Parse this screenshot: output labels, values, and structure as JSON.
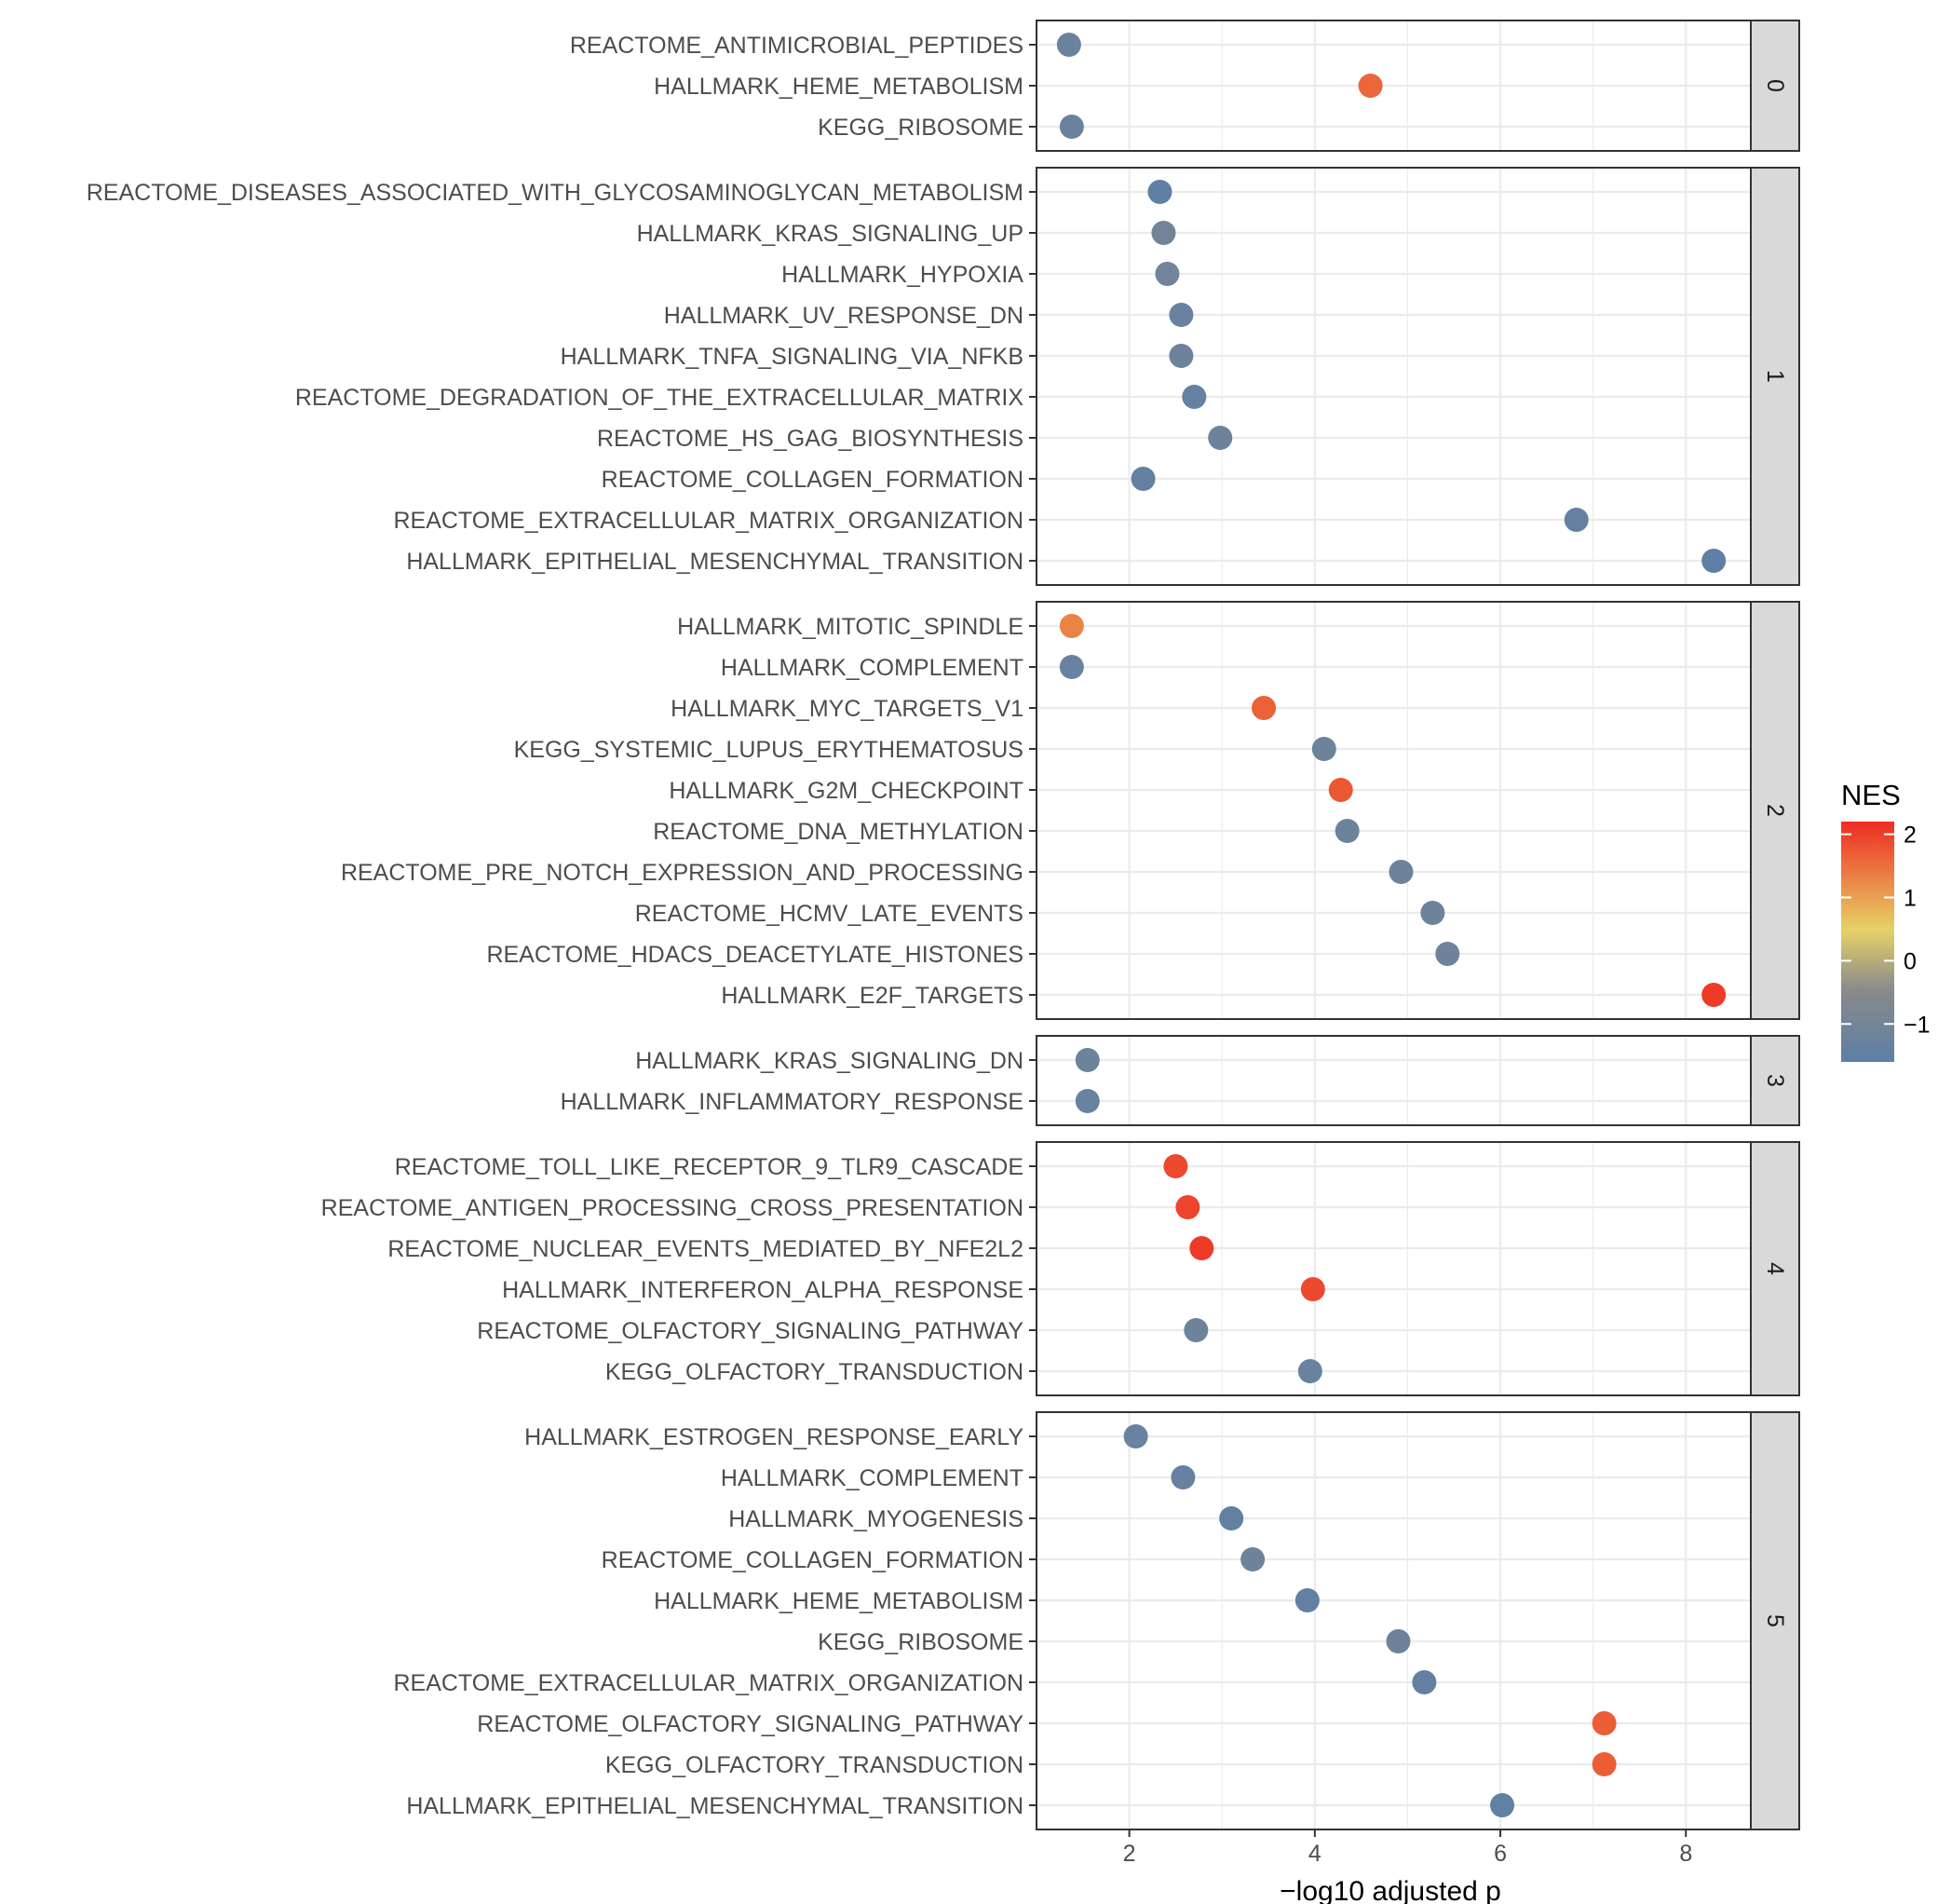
{
  "chart_data": {
    "type": "scatter",
    "xlabel": "−log10 adjusted p",
    "xlim": [
      1.0,
      8.7
    ],
    "xticks": [
      {
        "value": 2,
        "label": "2"
      },
      {
        "value": 4,
        "label": "4"
      },
      {
        "value": 6,
        "label": "6"
      },
      {
        "value": 8,
        "label": "8"
      }
    ],
    "grid": true,
    "legend": {
      "title": "NES",
      "position": "right",
      "range": [
        -1.6,
        2.2
      ],
      "ticks": [
        {
          "value": 2,
          "label": "2"
        },
        {
          "value": 1,
          "label": "1"
        },
        {
          "value": 0,
          "label": "0"
        },
        {
          "value": -1,
          "label": "−1"
        }
      ]
    },
    "colors": {
      "low": "#5d7fa6",
      "mid_low": "#8a8a8a",
      "mid_high": "#e6d267",
      "high": "#ee2c22"
    },
    "facets": [
      {
        "label": "0",
        "rows": [
          {
            "term": "REACTOME_ANTIMICROBIAL_PEPTIDES",
            "x": 1.35,
            "nes": -1.25
          },
          {
            "term": "HALLMARK_HEME_METABOLISM",
            "x": 4.6,
            "nes": 1.6
          },
          {
            "term": "KEGG_RIBOSOME",
            "x": 1.38,
            "nes": -1.28
          }
        ]
      },
      {
        "label": "1",
        "rows": [
          {
            "term": "REACTOME_DISEASES_ASSOCIATED_WITH_GLYCOSAMINOGLYCAN_METABOLISM",
            "x": 2.33,
            "nes": -1.55
          },
          {
            "term": "HALLMARK_KRAS_SIGNALING_UP",
            "x": 2.37,
            "nes": -1.05
          },
          {
            "term": "HALLMARK_HYPOXIA",
            "x": 2.41,
            "nes": -1.1
          },
          {
            "term": "HALLMARK_UV_RESPONSE_DN",
            "x": 2.56,
            "nes": -1.3
          },
          {
            "term": "HALLMARK_TNFA_SIGNALING_VIA_NFKB",
            "x": 2.56,
            "nes": -1.2
          },
          {
            "term": "REACTOME_DEGRADATION_OF_THE_EXTRACELLULAR_MATRIX",
            "x": 2.7,
            "nes": -1.4
          },
          {
            "term": "REACTOME_HS_GAG_BIOSYNTHESIS",
            "x": 2.98,
            "nes": -1.2
          },
          {
            "term": "REACTOME_COLLAGEN_FORMATION",
            "x": 2.15,
            "nes": -1.45
          },
          {
            "term": "REACTOME_EXTRACELLULAR_MATRIX_ORGANIZATION",
            "x": 6.82,
            "nes": -1.4
          },
          {
            "term": "HALLMARK_EPITHELIAL_MESENCHYMAL_TRANSITION",
            "x": 8.3,
            "nes": -1.55
          }
        ]
      },
      {
        "label": "2",
        "rows": [
          {
            "term": "HALLMARK_MITOTIC_SPINDLE",
            "x": 1.38,
            "nes": 1.3
          },
          {
            "term": "HALLMARK_COMPLEMENT",
            "x": 1.38,
            "nes": -1.3
          },
          {
            "term": "HALLMARK_MYC_TARGETS_V1",
            "x": 3.45,
            "nes": 1.65
          },
          {
            "term": "KEGG_SYSTEMIC_LUPUS_ERYTHEMATOSUS",
            "x": 4.1,
            "nes": -1.2
          },
          {
            "term": "HALLMARK_G2M_CHECKPOINT",
            "x": 4.28,
            "nes": 1.75
          },
          {
            "term": "REACTOME_DNA_METHYLATION",
            "x": 4.35,
            "nes": -1.2
          },
          {
            "term": "REACTOME_PRE_NOTCH_EXPRESSION_AND_PROCESSING",
            "x": 4.93,
            "nes": -1.2
          },
          {
            "term": "REACTOME_HCMV_LATE_EVENTS",
            "x": 5.27,
            "nes": -1.2
          },
          {
            "term": "REACTOME_HDACS_DEACETYLATE_HISTONES",
            "x": 5.43,
            "nes": -1.2
          },
          {
            "term": "HALLMARK_E2F_TARGETS",
            "x": 8.3,
            "nes": 2.05
          }
        ]
      },
      {
        "label": "3",
        "rows": [
          {
            "term": "HALLMARK_KRAS_SIGNALING_DN",
            "x": 1.55,
            "nes": -1.2
          },
          {
            "term": "HALLMARK_INFLAMMATORY_RESPONSE",
            "x": 1.55,
            "nes": -1.3
          }
        ]
      },
      {
        "label": "4",
        "rows": [
          {
            "term": "REACTOME_TOLL_LIKE_RECEPTOR_9_TLR9_CASCADE",
            "x": 2.5,
            "nes": 1.9
          },
          {
            "term": "REACTOME_ANTIGEN_PROCESSING_CROSS_PRESENTATION",
            "x": 2.63,
            "nes": 1.95
          },
          {
            "term": "REACTOME_NUCLEAR_EVENTS_MEDIATED_BY_NFE2L2",
            "x": 2.78,
            "nes": 2.05
          },
          {
            "term": "HALLMARK_INTERFERON_ALPHA_RESPONSE",
            "x": 3.98,
            "nes": 1.9
          },
          {
            "term": "REACTOME_OLFACTORY_SIGNALING_PATHWAY",
            "x": 2.72,
            "nes": -1.2
          },
          {
            "term": "KEGG_OLFACTORY_TRANSDUCTION",
            "x": 3.95,
            "nes": -1.3
          }
        ]
      },
      {
        "label": "5",
        "rows": [
          {
            "term": "HALLMARK_ESTROGEN_RESPONSE_EARLY",
            "x": 2.07,
            "nes": -1.3
          },
          {
            "term": "HALLMARK_COMPLEMENT",
            "x": 2.58,
            "nes": -1.35
          },
          {
            "term": "HALLMARK_MYOGENESIS",
            "x": 3.1,
            "nes": -1.45
          },
          {
            "term": "REACTOME_COLLAGEN_FORMATION",
            "x": 3.33,
            "nes": -1.2
          },
          {
            "term": "HALLMARK_HEME_METABOLISM",
            "x": 3.92,
            "nes": -1.45
          },
          {
            "term": "KEGG_RIBOSOME",
            "x": 4.9,
            "nes": -1.2
          },
          {
            "term": "REACTOME_EXTRACELLULAR_MATRIX_ORGANIZATION",
            "x": 5.18,
            "nes": -1.45
          },
          {
            "term": "REACTOME_OLFACTORY_SIGNALING_PATHWAY",
            "x": 7.12,
            "nes": 1.7
          },
          {
            "term": "KEGG_OLFACTORY_TRANSDUCTION",
            "x": 7.12,
            "nes": 1.7
          },
          {
            "term": "HALLMARK_EPITHELIAL_MESENCHYMAL_TRANSITION",
            "x": 6.02,
            "nes": -1.5
          }
        ]
      }
    ]
  }
}
